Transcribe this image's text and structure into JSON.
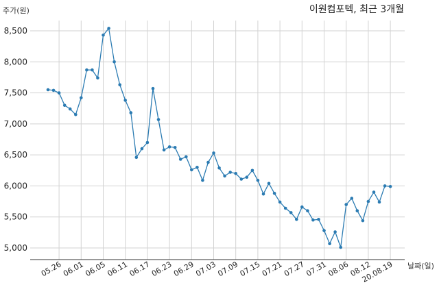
{
  "chart_data": {
    "type": "line",
    "title": "이원컴포텍, 최근 3개월",
    "ylabel": "주가(원)",
    "xlabel": "날짜(일)",
    "ylim": [
      4850,
      8700
    ],
    "yticks": [
      5000,
      5500,
      6000,
      6500,
      7000,
      7500,
      8000,
      8500
    ],
    "ytick_labels": [
      "5,000",
      "5,500",
      "6,000",
      "6,500",
      "7,000",
      "7,500",
      "8,000",
      "8,500"
    ],
    "xticks": [
      {
        "index": 2,
        "label": "05.26"
      },
      {
        "index": 6,
        "label": "06.01"
      },
      {
        "index": 10,
        "label": "06.05"
      },
      {
        "index": 14,
        "label": "06.11"
      },
      {
        "index": 18,
        "label": "06.17"
      },
      {
        "index": 22,
        "label": "06.23"
      },
      {
        "index": 26,
        "label": "06.29"
      },
      {
        "index": 30,
        "label": "07.03"
      },
      {
        "index": 34,
        "label": "07.09"
      },
      {
        "index": 38,
        "label": "07.15"
      },
      {
        "index": 42,
        "label": "07.21"
      },
      {
        "index": 46,
        "label": "07.27"
      },
      {
        "index": 50,
        "label": "07.31"
      },
      {
        "index": 54,
        "label": "08.06"
      },
      {
        "index": 58,
        "label": "08.12"
      },
      {
        "index": 62,
        "label": "20.08.19"
      }
    ],
    "grid": true,
    "color": "#2b7bb2",
    "series": [
      {
        "values": [
          7550,
          7540,
          7500,
          7300,
          7240,
          7150,
          7420,
          7870,
          7870,
          7740,
          8430,
          8540,
          8000,
          7630,
          7380,
          7180,
          6460,
          6600,
          6700,
          7570,
          7070,
          6580,
          6630,
          6620,
          6430,
          6470,
          6260,
          6300,
          6090,
          6380,
          6530,
          6290,
          6160,
          6220,
          6200,
          6110,
          6140,
          6250,
          6090,
          5870,
          6040,
          5880,
          5740,
          5640,
          5570,
          5460,
          5660,
          5600,
          5450,
          5460,
          5280,
          5070,
          5260,
          5010,
          5700,
          5800,
          5600,
          5440,
          5750,
          5900,
          5740,
          6000,
          5990
        ]
      }
    ]
  }
}
